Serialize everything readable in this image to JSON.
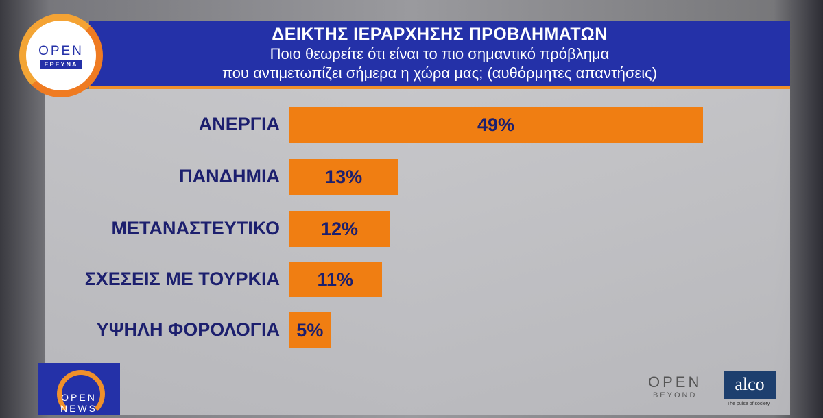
{
  "header": {
    "title": "ΔΕΙΚΤΗΣ ΙΕΡΑΡΧΗΣΗΣ ΠΡΟΒΛΗΜΑΤΩΝ",
    "subtitle_line1": "Ποιο θεωρείτε ότι είναι το πιο σημαντικό πρόβλημα",
    "subtitle_line2": "που αντιμετωπίζει σήμερα η χώρα μας; (αυθόρμητες απαντήσεις)"
  },
  "logos": {
    "open_erevna": {
      "top": "OPEN",
      "bottom": "ΕΡΕΥΝΑ"
    },
    "open_news": {
      "top": "OPEN",
      "bottom": "NEWS"
    },
    "open_beyond": {
      "top": "OPEN",
      "bottom": "BEYOND"
    },
    "alco": {
      "name": "alco",
      "tagline": "The pulse of society"
    }
  },
  "colors": {
    "bar": "#f07e12",
    "header": "#2431a8",
    "label": "#1c1f6e"
  },
  "chart_data": {
    "type": "bar",
    "orientation": "horizontal",
    "title": "ΔΕΙΚΤΗΣ ΙΕΡΑΡΧΗΣΗΣ ΠΡΟΒΛΗΜΑΤΩΝ",
    "categories": [
      "ΑΝΕΡΓΙΑ",
      "ΠΑΝΔΗΜΙΑ",
      "ΜΕΤΑΝΑΣΤΕΥΤΙΚΟ",
      "ΣΧΕΣΕΙΣ ΜΕ ΤΟΥΡΚΙΑ",
      "ΥΨΗΛΗ ΦΟΡΟΛΟΓΙΑ"
    ],
    "values": [
      49,
      13,
      12,
      11,
      5
    ],
    "data_labels": [
      "49%",
      "13%",
      "12%",
      "11%",
      "5%"
    ],
    "unit": "%",
    "grid": false
  }
}
